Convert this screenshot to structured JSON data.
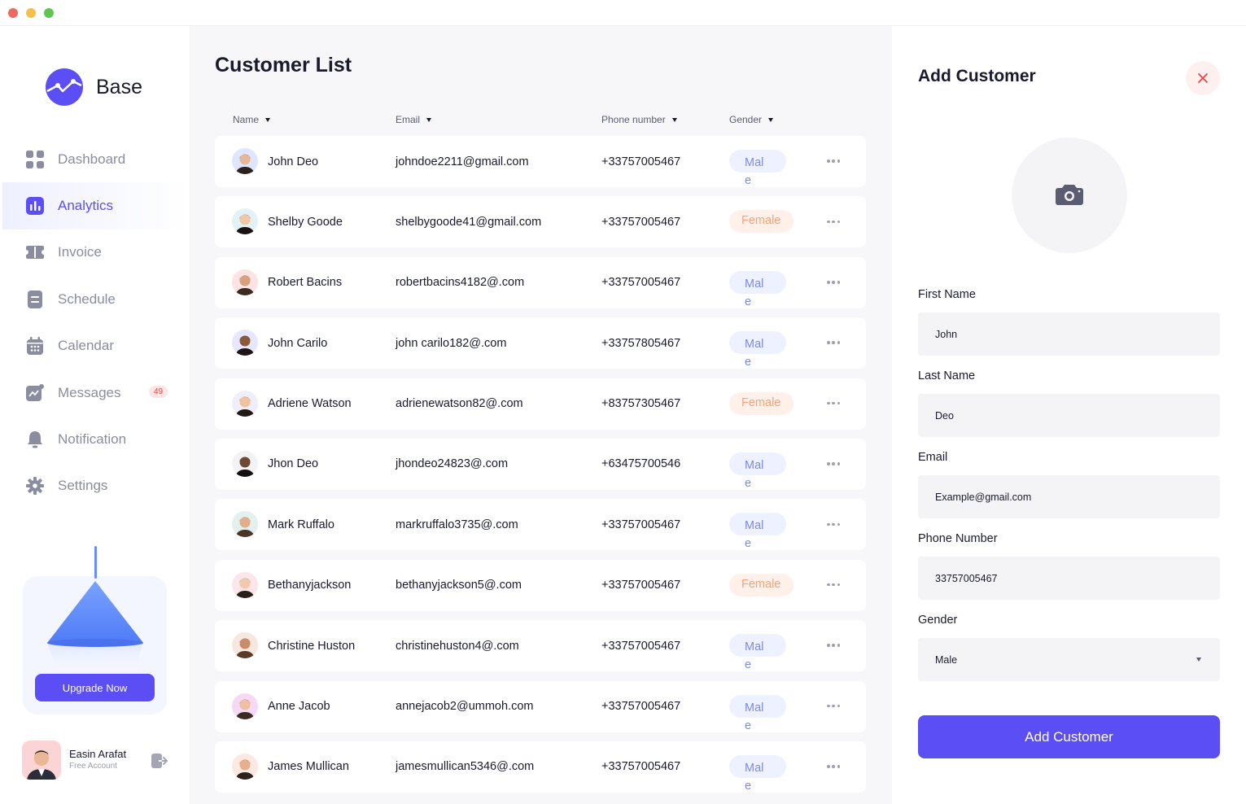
{
  "brand": {
    "name": "Base",
    "accent": "#5b4ef5"
  },
  "sidebar": {
    "items": [
      {
        "label": "Dashboard",
        "icon": "grid-icon"
      },
      {
        "label": "Analytics",
        "icon": "bar-chart-icon",
        "active": true
      },
      {
        "label": "Invoice",
        "icon": "ticket-icon"
      },
      {
        "label": "Schedule",
        "icon": "document-icon"
      },
      {
        "label": "Calendar",
        "icon": "calendar-icon"
      },
      {
        "label": "Messages",
        "icon": "chat-chart-icon",
        "badge": "49"
      },
      {
        "label": "Notification",
        "icon": "bell-icon"
      },
      {
        "label": "Settings",
        "icon": "gear-icon"
      }
    ],
    "upgrade_label": "Upgrade Now",
    "profile": {
      "name": "Easin Arafat",
      "subtitle": "Free Account"
    }
  },
  "main": {
    "title": "Customer List",
    "columns": {
      "name": "Name",
      "email": "Email",
      "phone": "Phone number",
      "gender": "Gender"
    },
    "customers": [
      {
        "name": "John Deo",
        "email": "johndoe2211@gmail.com",
        "phone": "+33757005467",
        "gender": "Male"
      },
      {
        "name": "Shelby Goode",
        "email": "shelbygoode41@gmail.com",
        "phone": "+33757005467",
        "gender": "Female"
      },
      {
        "name": "Robert Bacins",
        "email": "robertbacins4182@.com",
        "phone": "+33757005467",
        "gender": "Male"
      },
      {
        "name": "John Carilo",
        "email": "john carilo182@.com",
        "phone": "+33757805467",
        "gender": "Male"
      },
      {
        "name": "Adriene Watson",
        "email": "adrienewatson82@.com",
        "phone": "+83757305467",
        "gender": "Female"
      },
      {
        "name": "Jhon Deo",
        "email": "jhondeo24823@.com",
        "phone": "+63475700546",
        "gender": "Male"
      },
      {
        "name": "Mark Ruffalo",
        "email": "markruffalo3735@.com",
        "phone": "+33757005467",
        "gender": "Male"
      },
      {
        "name": "Bethanyjackson",
        "email": "bethanyjackson5@.com",
        "phone": "+33757005467",
        "gender": "Female"
      },
      {
        "name": "Christine Huston",
        "email": "christinehuston4@.com",
        "phone": "+33757005467",
        "gender": "Male"
      },
      {
        "name": "Anne Jacob",
        "email": "annejacob2@ummoh.com",
        "phone": "+33757005467",
        "gender": "Male"
      },
      {
        "name": "James Mullican",
        "email": "jamesmullican5346@.com",
        "phone": "+33757005467",
        "gender": "Male"
      }
    ]
  },
  "panel": {
    "title": "Add Customer",
    "fields": {
      "first_name": {
        "label": "First Name",
        "value": "John"
      },
      "last_name": {
        "label": "Last Name",
        "value": "Deo"
      },
      "email": {
        "label": "Email",
        "value": "Example@gmail.com"
      },
      "phone": {
        "label": "Phone Number",
        "value": "33757005467"
      },
      "gender": {
        "label": "Gender",
        "value": "Male"
      }
    },
    "submit_label": "Add Customer"
  },
  "colors": {
    "male_text": "#7c8ce0",
    "male_bg": "#eef1ff",
    "female_text": "#f6a27a",
    "female_bg": "#fff1ea"
  }
}
